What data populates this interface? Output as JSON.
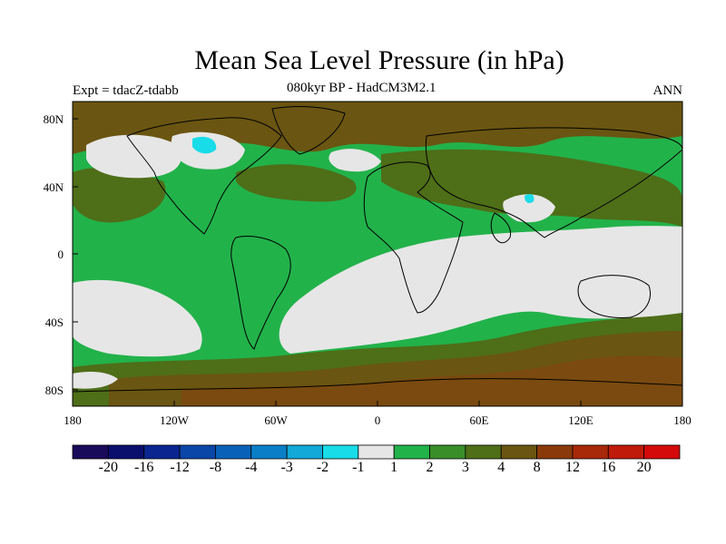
{
  "title": "Mean Sea Level Pressure (in hPa)",
  "left_subtitle": "Expt = tdacZ-tdabb",
  "center_subtitle": "080kyr BP - HadCM3M2.1",
  "right_subtitle": "ANN",
  "lat_labels": [
    "80N",
    "40N",
    "0",
    "40S",
    "80S"
  ],
  "lon_labels": [
    "180",
    "120W",
    "60W",
    "0",
    "60E",
    "120E",
    "180"
  ],
  "colorbar": {
    "labels": [
      "-20",
      "-16",
      "-12",
      "-8",
      "-4",
      "-3",
      "-2",
      "-1",
      "1",
      "2",
      "3",
      "4",
      "8",
      "12",
      "16",
      "20"
    ],
    "colors": [
      "#1a0a5a",
      "#0a0f6e",
      "#0a2590",
      "#0a45a8",
      "#0a62b8",
      "#0a7fc8",
      "#12a8d8",
      "#18dce8",
      "#e6e6e6",
      "#22b24a",
      "#3a8e2a",
      "#4e6e18",
      "#6a5512",
      "#8a3a0a",
      "#a8280a",
      "#c01a0a",
      "#d40a0a"
    ]
  },
  "map_colors": {
    "land_outline": "#000000",
    "neutral": "#e6e6e6",
    "green": "#22b24a",
    "dark_green": "#3a8e2a",
    "olive": "#4e6e18",
    "brown": "#6a5512",
    "cyan": "#18dce8"
  }
}
